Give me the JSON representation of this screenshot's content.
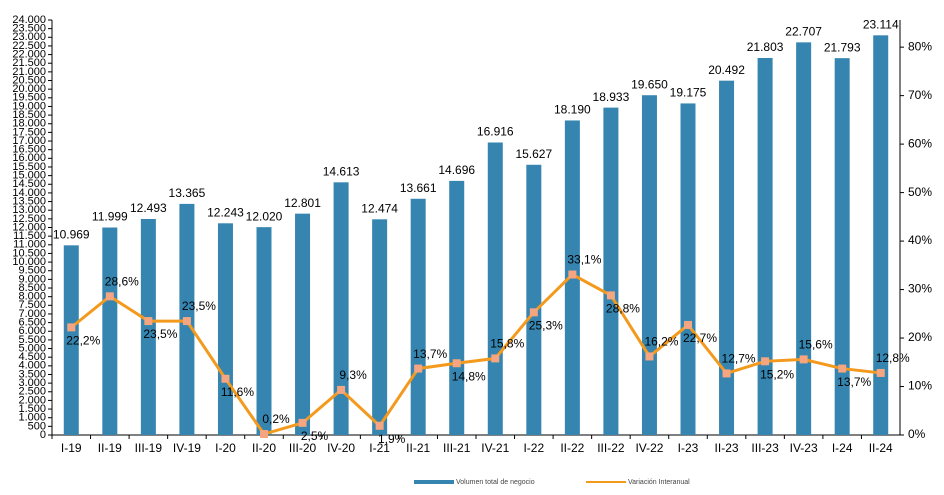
{
  "chart_data": {
    "type": "bar",
    "categories": [
      "I-19",
      "II-19",
      "III-19",
      "IV-19",
      "I-20",
      "II-20",
      "III-20",
      "IV-20",
      "I-21",
      "II-21",
      "III-21",
      "IV-21",
      "I-22",
      "II-22",
      "III-22",
      "IV-22",
      "I-23",
      "II-23",
      "III-23",
      "IV-23",
      "I-24",
      "II-24"
    ],
    "series": [
      {
        "name": "Volumen total de negocio",
        "type": "bar",
        "color": "#3585b0",
        "values": [
          10969,
          11999,
          12493,
          13365,
          12243,
          12020,
          12801,
          14613,
          12474,
          13661,
          14696,
          16916,
          15627,
          18190,
          18933,
          19650,
          19175,
          20492,
          21803,
          22707,
          21793,
          23114
        ],
        "value_labels": [
          "10.969",
          "11.999",
          "12.493",
          "13.365",
          "12.243",
          "12.020",
          "12.801",
          "14.613",
          "12.474",
          "13.661",
          "14.696",
          "16.916",
          "15.627",
          "18.190",
          "18.933",
          "19.650",
          "19.175",
          "20.492",
          "21.803",
          "22.707",
          "21.793",
          "23.114"
        ]
      },
      {
        "name": "Variación Interanual",
        "type": "line",
        "axis": "y2",
        "color": "#f39a1e",
        "marker_color": "#f5a580",
        "values": [
          22.2,
          28.6,
          23.5,
          23.5,
          11.6,
          0.2,
          2.5,
          9.3,
          1.9,
          13.7,
          14.8,
          15.8,
          25.3,
          33.1,
          28.8,
          16.2,
          22.7,
          12.7,
          15.2,
          15.6,
          13.7,
          12.8
        ],
        "value_labels": [
          "22,2%",
          "28,6%",
          "23,5%",
          "23,5%",
          "11,6%",
          "0,2%",
          "2,5%",
          "9,3%",
          "1,9%",
          "13,7%",
          "14,8%",
          "15,8%",
          "25,3%",
          "33,1%",
          "28,8%",
          "16,2%",
          "22,7%",
          "12,7%",
          "15,2%",
          "15,6%",
          "13,7%",
          "12,8%"
        ]
      }
    ],
    "ylim": [
      0,
      24000
    ],
    "yticks": [
      0,
      500,
      {
        "value": 1000,
        "label": "1.000"
      },
      {
        "value": 1500,
        "label": "1.500"
      },
      {
        "value": 2000,
        "label": "2.000"
      },
      {
        "value": 2500,
        "label": "2.500"
      },
      {
        "value": 3000,
        "label": "3.000"
      },
      {
        "value": 3500,
        "label": "3.500"
      },
      {
        "value": 4000,
        "label": "4.000"
      },
      {
        "value": 4500,
        "label": "4.500"
      },
      {
        "value": 5000,
        "label": "5.000"
      },
      {
        "value": 5500,
        "label": "5.500"
      },
      {
        "value": 6000,
        "label": "6.000"
      },
      {
        "value": 6500,
        "label": "6.500"
      },
      {
        "value": 7000,
        "label": "7.000"
      },
      {
        "value": 7500,
        "label": "7.500"
      },
      {
        "value": 8000,
        "label": "8.000"
      },
      {
        "value": 8500,
        "label": "8.500"
      },
      {
        "value": 9000,
        "label": "9.000"
      },
      {
        "value": 9500,
        "label": "9.500"
      },
      {
        "value": 10000,
        "label": "10.000"
      },
      {
        "value": 10500,
        "label": "10.500"
      },
      {
        "value": 11000,
        "label": "11.000"
      },
      {
        "value": 11500,
        "label": "11.500"
      },
      {
        "value": 12000,
        "label": "12.000"
      },
      {
        "value": 12500,
        "label": "12.500"
      },
      {
        "value": 13000,
        "label": "13.000"
      },
      {
        "value": 13500,
        "label": "13.500"
      },
      {
        "value": 14000,
        "label": "14.000"
      },
      {
        "value": 14500,
        "label": "14.500"
      },
      {
        "value": 15000,
        "label": "15.000"
      },
      {
        "value": 15500,
        "label": "15.500"
      },
      {
        "value": 16000,
        "label": "16.000"
      },
      {
        "value": 16500,
        "label": "16.500"
      },
      {
        "value": 17000,
        "label": "17.000"
      },
      {
        "value": 17500,
        "label": "17.500"
      },
      {
        "value": 18000,
        "label": "18.000"
      },
      {
        "value": 18500,
        "label": "18.500"
      },
      {
        "value": 19000,
        "label": "19.000"
      },
      {
        "value": 19500,
        "label": "19.500"
      },
      {
        "value": 20000,
        "label": "20.000"
      },
      {
        "value": 20500,
        "label": "20.500"
      },
      {
        "value": 21000,
        "label": "21.000"
      },
      {
        "value": 21500,
        "label": "21.500"
      },
      {
        "value": 22000,
        "label": "22.000"
      },
      {
        "value": 22500,
        "label": "22.500"
      },
      {
        "value": 23000,
        "label": "23.000"
      },
      {
        "value": 23500,
        "label": "23.500"
      },
      {
        "value": 24000,
        "label": "24.000"
      }
    ],
    "y2lim": [
      0,
      85.6
    ],
    "y2ticks": [
      {
        "value": 0,
        "label": "0%"
      },
      {
        "value": 10,
        "label": "10%"
      },
      {
        "value": 20,
        "label": "20%"
      },
      {
        "value": 30,
        "label": "30%"
      },
      {
        "value": 40,
        "label": "40%"
      },
      {
        "value": 50,
        "label": "50%"
      },
      {
        "value": 60,
        "label": "60%"
      },
      {
        "value": 70,
        "label": "70%"
      },
      {
        "value": 80,
        "label": "80%"
      }
    ],
    "grid": false
  }
}
